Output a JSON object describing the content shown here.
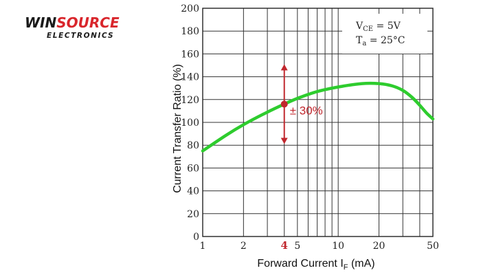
{
  "logo": {
    "name_part1": "WIN",
    "name_part2": "SOURCE",
    "subtitle": "ELECTRONICS"
  },
  "colors": {
    "curve": "#2ecc2e",
    "annotation": "#c0272d",
    "logo_red": "#d9262c",
    "grid": "#333333"
  },
  "chart_data": {
    "type": "line",
    "x_scale": "log",
    "xlim": [
      1,
      50
    ],
    "ylim": [
      0,
      200
    ],
    "xlabel": "Forward Current I",
    "xlabel_sub": "F",
    "xlabel_unit": " (mA)",
    "ylabel": "Current Transfer Ratio (%)",
    "grid": true,
    "x_ticks": [
      {
        "value": 1,
        "label": "1"
      },
      {
        "value": 2,
        "label": "2"
      },
      {
        "value": 5,
        "label": "5"
      },
      {
        "value": 10,
        "label": "10"
      },
      {
        "value": 20,
        "label": "20"
      },
      {
        "value": 50,
        "label": "50"
      }
    ],
    "x_minor_grid": [
      2,
      3,
      4,
      5,
      6,
      7,
      8,
      9,
      20,
      30,
      40
    ],
    "y_ticks": [
      0,
      20,
      40,
      60,
      80,
      100,
      120,
      140,
      160,
      180,
      200
    ],
    "series": [
      {
        "x": [
          1,
          1.5,
          2,
          3,
          4,
          5,
          7,
          10,
          15,
          20,
          25,
          30,
          35,
          40,
          45,
          50
        ],
        "y": [
          75,
          89,
          98,
          109,
          116,
          121,
          127,
          131,
          134,
          134,
          132,
          128,
          122,
          115,
          108,
          103
        ]
      }
    ],
    "conditions": {
      "line1": {
        "prefix": "V",
        "sub": "CE",
        "suffix": " = 5V"
      },
      "line2": {
        "prefix": "T",
        "sub": "a",
        "suffix": " = 25°C"
      }
    },
    "annotation": {
      "x": 4,
      "y": 116,
      "y_low": 81,
      "y_high": 151,
      "label": "± 30%",
      "highlight_tick_label": "4"
    }
  }
}
